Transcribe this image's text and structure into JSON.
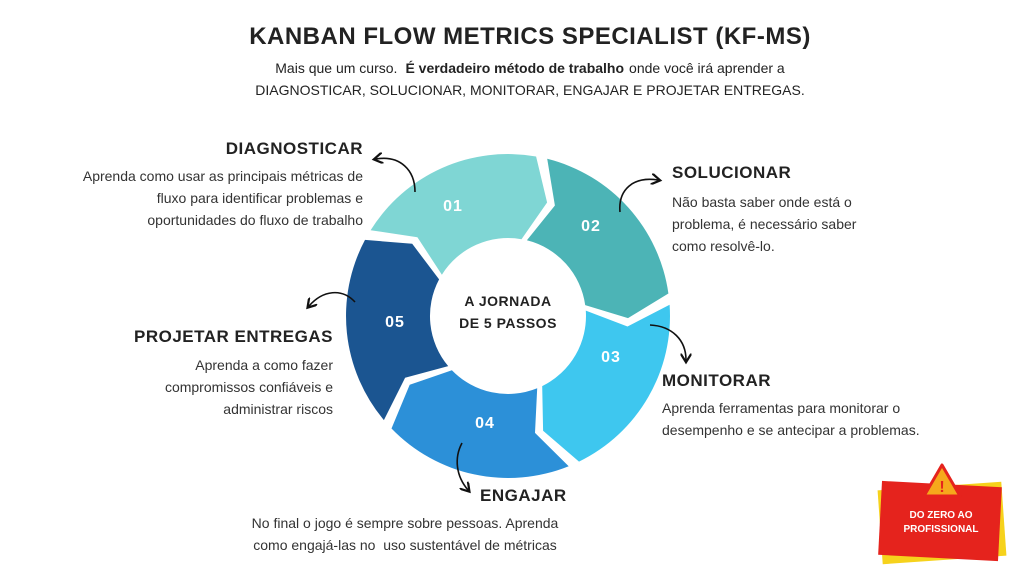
{
  "header": {
    "title": "KANBAN FLOW METRICS SPECIALIST (KF-MS)",
    "intro": {
      "lead": "Mais que um curso.",
      "bold": "É verdadeiro método de trabalho",
      "rest": "onde você irá aprender a",
      "line2": "DIAGNOSTICAR, SOLUCIONAR, MONITORAR, ENGAJAR E PROJETAR ENTREGAS."
    }
  },
  "center": [
    "A JORNADA",
    "DE 5 PASSOS"
  ],
  "steps": [
    {
      "number": "01",
      "title": "DIAGNOSTICAR",
      "lines": [
        "Aprenda como usar as principais métricas de",
        "fluxo para identificar problemas e",
        "oportunidades do fluxo de trabalho"
      ]
    },
    {
      "number": "02",
      "title": "SOLUCIONAR",
      "lines": [
        "Não basta saber onde está o",
        "problema, é necessário saber",
        "como resolvê-lo."
      ]
    },
    {
      "number": "03",
      "title": "MONITORAR",
      "lines": [
        "Aprenda ferramentas para monitorar o",
        "desempenho e se antecipar a problemas."
      ]
    },
    {
      "number": "04",
      "title": "ENGAJAR",
      "lines": [
        "No final o jogo é sempre sobre pessoas. Aprenda",
        "como engajá-las no  uso sustentável de métricas"
      ]
    },
    {
      "number": "05",
      "title": "PROJETAR ENTREGAS",
      "lines": [
        "Aprenda a como fazer",
        "compromissos confiáveis e",
        "administrar riscos"
      ]
    }
  ],
  "badge": [
    "DO ZERO AO",
    "PROFISSIONAL"
  ]
}
